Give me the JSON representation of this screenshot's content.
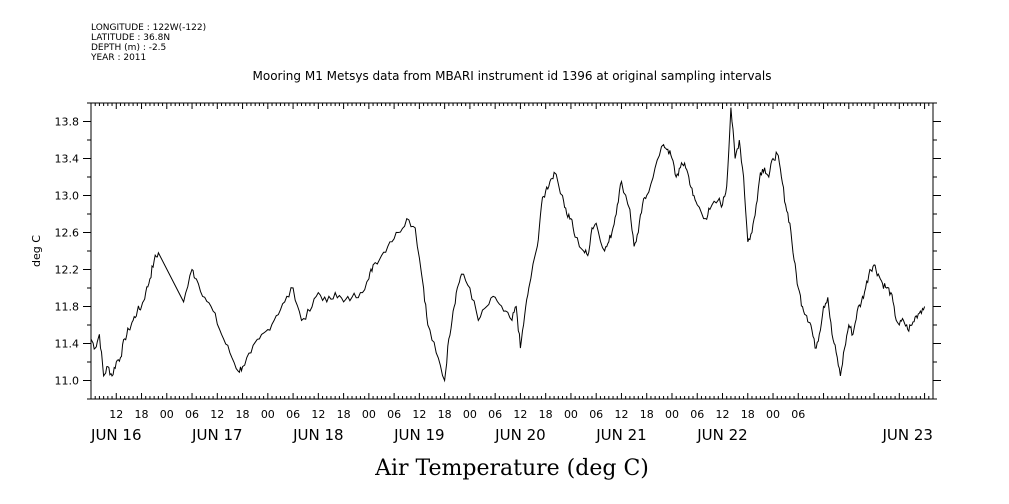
{
  "header": {
    "meta_lines": [
      "LONGITUDE : 122W(-122)",
      "LATITUDE : 36.8N",
      "DEPTH (m) : -2.5",
      "YEAR : 2011"
    ]
  },
  "chart_data": {
    "type": "line",
    "title": "Mooring M1 Metsys data from MBARI instrument id 1396 at original sampling intervals",
    "xlabel": "Air Temperature (deg C)",
    "ylabel": "deg C",
    "ylim": [
      10.8,
      14.0
    ],
    "y_ticks": [
      "11.0",
      "11.4",
      "11.8",
      "12.2",
      "12.6",
      "13.0",
      "13.4",
      "13.8"
    ],
    "x_range_hours": [
      0,
      200
    ],
    "hour_tick_labels": [
      "12",
      "18",
      "00",
      "06",
      "12",
      "18",
      "00",
      "06",
      "12",
      "18",
      "00",
      "06",
      "12",
      "18",
      "00",
      "06",
      "12",
      "18",
      "00",
      "06",
      "12",
      "18",
      "00",
      "06",
      "12",
      "18",
      "00",
      "06"
    ],
    "date_labels": [
      "JUN 16",
      "JUN 17",
      "JUN 18",
      "JUN 19",
      "JUN 20",
      "JUN 21",
      "JUN 22",
      "JUN 23"
    ],
    "grid": false,
    "series": [
      {
        "points": [
          [
            0,
            11.45
          ],
          [
            1,
            11.35
          ],
          [
            2,
            11.5
          ],
          [
            3,
            11.05
          ],
          [
            4,
            11.15
          ],
          [
            5,
            11.05
          ],
          [
            6,
            11.2
          ],
          [
            7,
            11.25
          ],
          [
            8,
            11.45
          ],
          [
            9,
            11.55
          ],
          [
            10,
            11.65
          ],
          [
            11,
            11.75
          ],
          [
            12,
            11.8
          ],
          [
            13,
            11.95
          ],
          [
            14,
            12.1
          ],
          [
            15,
            12.3
          ],
          [
            16,
            12.38
          ],
          [
            22,
            11.85
          ],
          [
            24,
            12.2
          ],
          [
            25,
            12.1
          ],
          [
            27,
            11.9
          ],
          [
            29,
            11.75
          ],
          [
            31,
            11.5
          ],
          [
            33,
            11.3
          ],
          [
            35,
            11.1
          ],
          [
            36,
            11.15
          ],
          [
            38,
            11.3
          ],
          [
            40,
            11.45
          ],
          [
            42,
            11.55
          ],
          [
            44,
            11.7
          ],
          [
            46,
            11.85
          ],
          [
            48,
            12.0
          ],
          [
            50,
            11.65
          ],
          [
            52,
            11.75
          ],
          [
            54,
            11.95
          ],
          [
            56,
            11.85
          ],
          [
            58,
            11.95
          ],
          [
            60,
            11.85
          ],
          [
            62,
            11.9
          ],
          [
            64,
            11.95
          ],
          [
            66,
            12.1
          ],
          [
            67,
            12.25
          ],
          [
            69,
            12.35
          ],
          [
            71,
            12.5
          ],
          [
            73,
            12.6
          ],
          [
            75,
            12.75
          ],
          [
            77,
            12.65
          ],
          [
            79,
            12.0
          ],
          [
            80,
            11.6
          ],
          [
            82,
            11.3
          ],
          [
            84,
            11.0
          ],
          [
            85,
            11.45
          ],
          [
            86,
            11.75
          ],
          [
            87,
            12.0
          ],
          [
            88,
            12.15
          ],
          [
            90,
            12.0
          ],
          [
            92,
            11.65
          ],
          [
            94,
            11.8
          ],
          [
            96,
            11.9
          ],
          [
            98,
            11.75
          ],
          [
            100,
            11.65
          ],
          [
            101,
            11.8
          ],
          [
            102,
            11.35
          ],
          [
            103,
            11.7
          ],
          [
            104,
            12.0
          ],
          [
            106,
            12.45
          ],
          [
            107,
            12.9
          ],
          [
            108,
            13.05
          ],
          [
            109,
            13.15
          ],
          [
            110,
            13.25
          ],
          [
            112,
            13.0
          ],
          [
            113,
            12.8
          ],
          [
            114,
            12.75
          ],
          [
            115,
            12.55
          ],
          [
            117,
            12.4
          ],
          [
            118,
            12.35
          ],
          [
            119,
            12.65
          ],
          [
            120,
            12.7
          ],
          [
            122,
            12.4
          ],
          [
            123,
            12.5
          ],
          [
            124,
            12.65
          ],
          [
            125,
            12.9
          ],
          [
            126,
            13.15
          ],
          [
            128,
            12.85
          ],
          [
            129,
            12.45
          ],
          [
            130,
            12.6
          ],
          [
            131,
            12.9
          ],
          [
            132,
            13.0
          ],
          [
            134,
            13.3
          ],
          [
            136,
            13.55
          ],
          [
            137,
            13.5
          ],
          [
            138,
            13.4
          ],
          [
            139,
            13.2
          ],
          [
            140,
            13.3
          ],
          [
            141,
            13.35
          ],
          [
            142,
            13.2
          ],
          [
            143,
            13.0
          ],
          [
            144,
            12.9
          ],
          [
            146,
            12.75
          ],
          [
            147,
            12.85
          ],
          [
            149,
            12.95
          ],
          [
            150,
            12.9
          ],
          [
            151,
            13.1
          ],
          [
            152,
            13.95
          ],
          [
            153,
            13.4
          ],
          [
            154,
            13.6
          ],
          [
            155,
            13.2
          ],
          [
            156,
            12.5
          ],
          [
            157,
            12.6
          ],
          [
            158,
            12.9
          ],
          [
            159,
            13.25
          ],
          [
            160,
            13.3
          ],
          [
            161,
            13.2
          ],
          [
            162,
            13.4
          ],
          [
            163,
            13.45
          ],
          [
            164,
            13.2
          ],
          [
            165,
            12.9
          ],
          [
            166,
            12.7
          ],
          [
            167,
            12.3
          ],
          [
            168,
            12.0
          ],
          [
            169,
            11.8
          ],
          [
            170,
            11.7
          ],
          [
            171,
            11.6
          ],
          [
            172,
            11.35
          ],
          [
            173,
            11.5
          ],
          [
            174,
            11.8
          ],
          [
            175,
            11.9
          ],
          [
            176,
            11.5
          ],
          [
            177,
            11.3
          ],
          [
            178,
            11.05
          ],
          [
            179,
            11.35
          ],
          [
            180,
            11.6
          ],
          [
            181,
            11.5
          ],
          [
            182,
            11.75
          ],
          [
            183,
            11.85
          ],
          [
            184,
            12.0
          ],
          [
            185,
            12.2
          ],
          [
            186,
            12.25
          ],
          [
            187,
            12.15
          ],
          [
            188,
            12.05
          ],
          [
            189,
            12.0
          ],
          [
            190,
            11.95
          ],
          [
            191,
            11.7
          ],
          [
            192,
            11.6
          ],
          [
            193,
            11.65
          ],
          [
            194,
            11.55
          ],
          [
            195,
            11.6
          ],
          [
            196,
            11.7
          ],
          [
            197,
            11.75
          ],
          [
            198,
            11.8
          ]
        ]
      }
    ]
  }
}
